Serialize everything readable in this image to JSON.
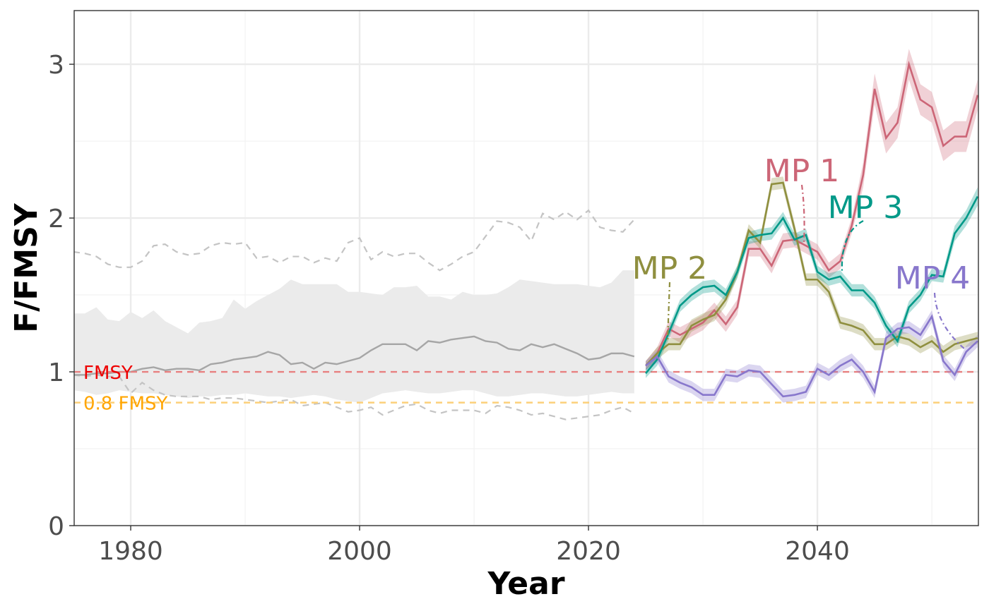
{
  "chart_data": {
    "type": "line",
    "xlabel": "Year",
    "ylabel": "F/FMSY",
    "xlim": [
      1975.06,
      2054.07
    ],
    "ylim": [
      0,
      3.349
    ],
    "xticks": [
      1980,
      2000,
      2020,
      2040
    ],
    "yticks": [
      0,
      1,
      2,
      3
    ],
    "minor_xticks": [
      1990,
      2010,
      2030,
      2050
    ],
    "minor_yticks": [
      0.5,
      1.5,
      2.5
    ],
    "grid": true,
    "historical": {
      "color": "#a6a6a6",
      "band_color": "#ebebeb",
      "dashed_color": "#c4c4c4",
      "x": [
        1975,
        1976,
        1977,
        1978,
        1979,
        1980,
        1981,
        1982,
        1983,
        1984,
        1985,
        1986,
        1987,
        1988,
        1989,
        1990,
        1991,
        1992,
        1993,
        1994,
        1995,
        1996,
        1997,
        1998,
        1999,
        2000,
        2001,
        2002,
        2003,
        2004,
        2005,
        2006,
        2007,
        2008,
        2009,
        2010,
        2011,
        2012,
        2013,
        2014,
        2015,
        2016,
        2017,
        2018,
        2019,
        2020,
        2021,
        2022,
        2023,
        2024
      ],
      "values": [
        0.98,
        0.98,
        0.99,
        0.99,
        1.0,
        1.0,
        1.02,
        1.03,
        1.01,
        1.02,
        1.02,
        1.01,
        1.05,
        1.06,
        1.08,
        1.09,
        1.1,
        1.13,
        1.11,
        1.05,
        1.06,
        1.02,
        1.06,
        1.05,
        1.07,
        1.09,
        1.14,
        1.18,
        1.18,
        1.18,
        1.14,
        1.2,
        1.19,
        1.21,
        1.22,
        1.23,
        1.2,
        1.19,
        1.15,
        1.14,
        1.18,
        1.16,
        1.18,
        1.15,
        1.12,
        1.08,
        1.09,
        1.12,
        1.12,
        1.1
      ],
      "lower": [
        0.88,
        0.87,
        0.85,
        0.86,
        0.88,
        0.87,
        0.86,
        0.86,
        0.85,
        0.84,
        0.83,
        0.84,
        0.84,
        0.85,
        0.85,
        0.86,
        0.85,
        0.84,
        0.84,
        0.83,
        0.84,
        0.85,
        0.84,
        0.82,
        0.81,
        0.8,
        0.83,
        0.86,
        0.87,
        0.88,
        0.87,
        0.86,
        0.86,
        0.87,
        0.88,
        0.88,
        0.86,
        0.84,
        0.84,
        0.85,
        0.86,
        0.86,
        0.85,
        0.84,
        0.84,
        0.85,
        0.86,
        0.87,
        0.86,
        0.86
      ],
      "upper": [
        1.38,
        1.38,
        1.42,
        1.34,
        1.33,
        1.39,
        1.35,
        1.4,
        1.33,
        1.29,
        1.25,
        1.32,
        1.33,
        1.35,
        1.47,
        1.41,
        1.46,
        1.5,
        1.54,
        1.6,
        1.57,
        1.57,
        1.57,
        1.57,
        1.52,
        1.52,
        1.51,
        1.5,
        1.55,
        1.55,
        1.56,
        1.49,
        1.49,
        1.47,
        1.52,
        1.5,
        1.5,
        1.51,
        1.55,
        1.6,
        1.59,
        1.58,
        1.57,
        1.57,
        1.57,
        1.56,
        1.55,
        1.58,
        1.66,
        1.66
      ],
      "lower_dashed": [
        0.98,
        0.97,
        0.98,
        0.97,
        0.97,
        0.86,
        0.93,
        0.88,
        0.85,
        0.84,
        0.84,
        0.84,
        0.82,
        0.83,
        0.83,
        0.82,
        0.81,
        0.8,
        0.81,
        0.82,
        0.78,
        0.79,
        0.8,
        0.77,
        0.74,
        0.75,
        0.77,
        0.72,
        0.75,
        0.78,
        0.79,
        0.75,
        0.73,
        0.75,
        0.75,
        0.75,
        0.73,
        0.78,
        0.77,
        0.75,
        0.72,
        0.73,
        0.71,
        0.69,
        0.7,
        0.71,
        0.72,
        0.75,
        0.77,
        0.73
      ],
      "upper_dashed": [
        1.78,
        1.77,
        1.75,
        1.7,
        1.68,
        1.68,
        1.72,
        1.82,
        1.83,
        1.78,
        1.76,
        1.77,
        1.82,
        1.84,
        1.83,
        1.84,
        1.74,
        1.75,
        1.71,
        1.75,
        1.75,
        1.71,
        1.74,
        1.72,
        1.84,
        1.87,
        1.73,
        1.78,
        1.75,
        1.77,
        1.77,
        1.71,
        1.66,
        1.7,
        1.75,
        1.78,
        1.88,
        1.98,
        1.97,
        1.94,
        1.85,
        2.03,
        1.99,
        2.04,
        1.99,
        2.05,
        1.94,
        1.92,
        1.91,
        1.99
      ]
    },
    "projection_x": [
      2025,
      2026,
      2027,
      2028,
      2029,
      2030,
      2031,
      2032,
      2033,
      2034,
      2035,
      2036,
      2037,
      2038,
      2039,
      2040,
      2041,
      2042,
      2043,
      2044,
      2045,
      2046,
      2047,
      2048,
      2049,
      2050,
      2051,
      2052,
      2053,
      2054
    ],
    "series": [
      {
        "name": "MP 1",
        "color": "#cc6677",
        "values": [
          1.04,
          1.12,
          1.28,
          1.24,
          1.28,
          1.32,
          1.4,
          1.31,
          1.42,
          1.8,
          1.8,
          1.69,
          1.85,
          1.86,
          1.82,
          1.78,
          1.66,
          1.72,
          1.95,
          2.28,
          2.84,
          2.52,
          2.62,
          3.0,
          2.77,
          2.72,
          2.47,
          2.53,
          2.53,
          2.8
        ],
        "lower": [
          1.01,
          1.08,
          1.23,
          1.19,
          1.23,
          1.27,
          1.35,
          1.26,
          1.37,
          1.75,
          1.75,
          1.64,
          1.8,
          1.81,
          1.77,
          1.73,
          1.61,
          1.67,
          1.9,
          2.2,
          2.74,
          2.42,
          2.52,
          2.9,
          2.67,
          2.62,
          2.37,
          2.43,
          2.43,
          2.7
        ],
        "upper": [
          1.07,
          1.16,
          1.33,
          1.29,
          1.33,
          1.37,
          1.45,
          1.36,
          1.47,
          1.85,
          1.85,
          1.74,
          1.9,
          1.91,
          1.87,
          1.83,
          1.71,
          1.77,
          2.0,
          2.36,
          2.94,
          2.62,
          2.72,
          3.1,
          2.87,
          2.82,
          2.57,
          2.63,
          2.63,
          2.9
        ]
      },
      {
        "name": "MP 2",
        "color": "#8f8f3f",
        "values": [
          1.04,
          1.12,
          1.18,
          1.18,
          1.3,
          1.34,
          1.37,
          1.47,
          1.65,
          1.92,
          1.84,
          2.22,
          2.23,
          1.93,
          1.6,
          1.6,
          1.52,
          1.32,
          1.3,
          1.27,
          1.18,
          1.18,
          1.23,
          1.21,
          1.16,
          1.2,
          1.13,
          1.18,
          1.2,
          1.22
        ],
        "lower": [
          1.01,
          1.08,
          1.14,
          1.14,
          1.26,
          1.3,
          1.33,
          1.43,
          1.61,
          1.88,
          1.8,
          2.18,
          2.19,
          1.89,
          1.56,
          1.56,
          1.48,
          1.28,
          1.26,
          1.23,
          1.14,
          1.14,
          1.19,
          1.17,
          1.12,
          1.16,
          1.09,
          1.14,
          1.16,
          1.18
        ],
        "upper": [
          1.07,
          1.16,
          1.22,
          1.22,
          1.34,
          1.38,
          1.41,
          1.51,
          1.69,
          1.96,
          1.88,
          2.26,
          2.27,
          1.97,
          1.64,
          1.64,
          1.56,
          1.36,
          1.34,
          1.31,
          1.22,
          1.22,
          1.27,
          1.25,
          1.2,
          1.24,
          1.17,
          1.22,
          1.24,
          1.26
        ]
      },
      {
        "name": "MP 3",
        "color": "#009988",
        "values": [
          0.99,
          1.08,
          1.25,
          1.43,
          1.5,
          1.55,
          1.56,
          1.5,
          1.65,
          1.87,
          1.89,
          1.9,
          2.0,
          1.86,
          1.89,
          1.65,
          1.6,
          1.62,
          1.53,
          1.53,
          1.45,
          1.3,
          1.2,
          1.42,
          1.5,
          1.63,
          1.62,
          1.9,
          2.0,
          2.14
        ],
        "lower": [
          0.96,
          1.04,
          1.21,
          1.39,
          1.46,
          1.51,
          1.52,
          1.46,
          1.61,
          1.83,
          1.85,
          1.86,
          1.96,
          1.82,
          1.85,
          1.61,
          1.56,
          1.58,
          1.49,
          1.49,
          1.41,
          1.26,
          1.16,
          1.38,
          1.46,
          1.59,
          1.58,
          1.85,
          1.95,
          2.08
        ],
        "upper": [
          1.02,
          1.12,
          1.29,
          1.47,
          1.54,
          1.59,
          1.6,
          1.54,
          1.69,
          1.91,
          1.93,
          1.94,
          2.04,
          1.9,
          1.93,
          1.69,
          1.64,
          1.66,
          1.57,
          1.57,
          1.49,
          1.34,
          1.24,
          1.46,
          1.54,
          1.67,
          1.66,
          1.95,
          2.05,
          2.2
        ]
      },
      {
        "name": "MP 4",
        "color": "#8877cc",
        "values": [
          1.04,
          1.1,
          0.97,
          0.93,
          0.9,
          0.85,
          0.85,
          0.98,
          0.97,
          1.01,
          1.0,
          0.92,
          0.84,
          0.85,
          0.87,
          1.02,
          0.98,
          1.04,
          1.08,
          1.0,
          0.87,
          1.22,
          1.28,
          1.29,
          1.24,
          1.36,
          1.07,
          0.98,
          1.13,
          1.2
        ],
        "lower": [
          1.01,
          1.06,
          0.93,
          0.89,
          0.86,
          0.81,
          0.81,
          0.94,
          0.93,
          0.97,
          0.96,
          0.88,
          0.8,
          0.81,
          0.83,
          0.98,
          0.94,
          1.0,
          1.04,
          0.96,
          0.83,
          1.18,
          1.24,
          1.25,
          1.2,
          1.32,
          1.03,
          0.94,
          1.09,
          1.16
        ],
        "upper": [
          1.07,
          1.14,
          1.01,
          0.97,
          0.94,
          0.89,
          0.89,
          1.02,
          1.01,
          1.05,
          1.04,
          0.96,
          0.88,
          0.89,
          0.91,
          1.06,
          1.02,
          1.08,
          1.12,
          1.04,
          0.91,
          1.26,
          1.32,
          1.33,
          1.28,
          1.4,
          1.11,
          1.02,
          1.17,
          1.24
        ]
      }
    ],
    "reference_lines": [
      {
        "value": 1,
        "label": "FMSY",
        "color": "#ee0000",
        "line_color": "#e88080"
      },
      {
        "value": 0.8,
        "label": "0.8 FMSY",
        "color": "#ffa500",
        "line_color": "#fcd07a"
      }
    ]
  }
}
